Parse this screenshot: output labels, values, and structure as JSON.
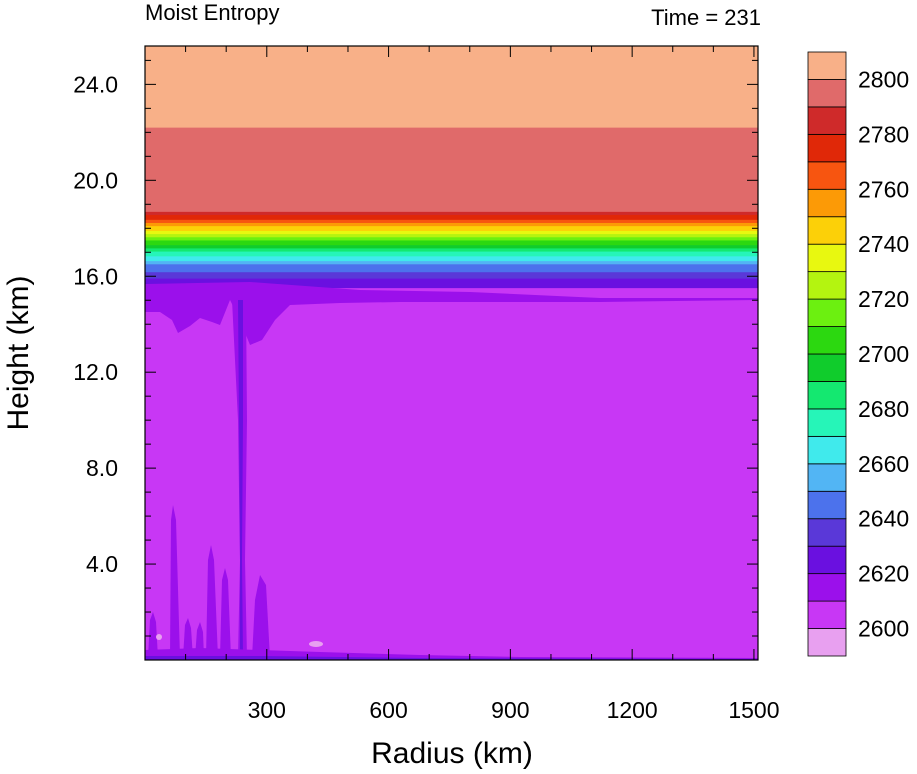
{
  "chart_data": {
    "type": "heatmap",
    "title_left": "Moist Entropy",
    "title_right": "Time = 231",
    "xlabel": "Radius (km)",
    "ylabel": "Height (km)",
    "xlim": [
      0,
      1510
    ],
    "ylim": [
      0,
      25.6
    ],
    "x_ticks": [
      300,
      600,
      900,
      1200,
      1500
    ],
    "x_tick_labels": [
      "300",
      "600",
      "900",
      "1200",
      "1500"
    ],
    "y_ticks": [
      4,
      8,
      12,
      16,
      20,
      24
    ],
    "y_tick_labels": [
      "4.0",
      "8.0",
      "12.0",
      "16.0",
      "20.0",
      "24.0"
    ],
    "colorbar": {
      "levels": [
        2600,
        2610,
        2620,
        2630,
        2640,
        2650,
        2660,
        2670,
        2680,
        2690,
        2700,
        2710,
        2720,
        2730,
        2740,
        2750,
        2760,
        2770,
        2780,
        2790,
        2800
      ],
      "labels": [
        "2600",
        "2620",
        "2640",
        "2660",
        "2680",
        "2700",
        "2720",
        "2740",
        "2760",
        "2780",
        "2800"
      ],
      "colors": [
        "#e8a0f0",
        "#c837f5",
        "#9b10eb",
        "#6a10e0",
        "#5a38d8",
        "#4c72ec",
        "#52b5f4",
        "#40eaec",
        "#26f5b8",
        "#14e870",
        "#10cc2c",
        "#2cd810",
        "#6cf010",
        "#b4f410",
        "#e8f810",
        "#fcd008",
        "#fc9a06",
        "#f75510",
        "#e02808",
        "#cf2a2a",
        "#e06a6a",
        "#f8b088"
      ]
    },
    "profile": [
      {
        "height": 0.1,
        "value": 2625
      },
      {
        "height": 0.5,
        "value": 2610
      },
      {
        "height": 15.0,
        "value": 2610
      },
      {
        "height": 15.8,
        "value": 2625
      },
      {
        "height": 16.5,
        "value": 2650
      },
      {
        "height": 17.2,
        "value": 2690
      },
      {
        "height": 17.8,
        "value": 2730
      },
      {
        "height": 18.3,
        "value": 2765
      },
      {
        "height": 18.8,
        "value": 2795
      },
      {
        "height": 25.6,
        "value": 2805
      }
    ]
  }
}
